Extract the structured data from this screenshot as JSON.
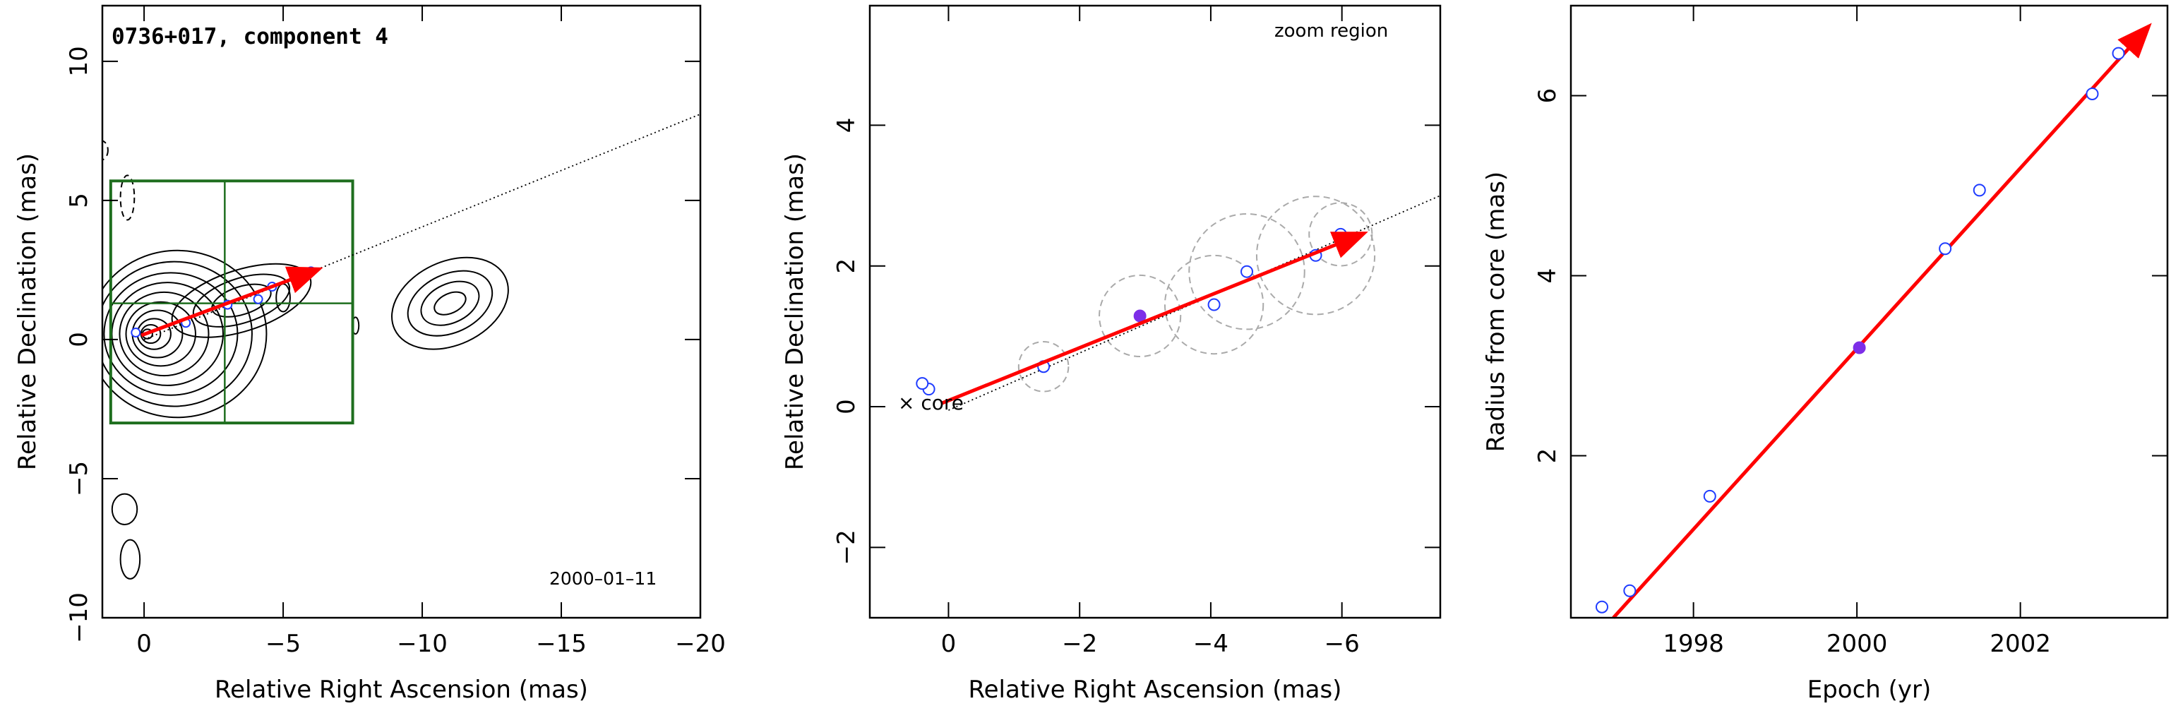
{
  "figure": {
    "panel1_title": "0736+017, component 4",
    "panel1_date": "2000–01–11",
    "panel2_zoom_label": "zoom region",
    "panel2_core_label": "× core"
  },
  "colors": {
    "fit_arrow": "#ff0000",
    "points_open": "#1f3cff",
    "points_filled": "#7d2ee8",
    "zoom_box": "#1e6e1e",
    "circles": "#aaaaaa"
  },
  "chart_data": [
    {
      "type": "scatter",
      "title": "0736+017, component 4",
      "xlabel": "Relative Right Ascension (mas)",
      "ylabel": "Relative Declination (mas)",
      "xlim": [
        1.5,
        -20
      ],
      "ylim": [
        -10,
        12
      ],
      "x_ticks": [
        0,
        -5,
        -10,
        -15,
        -20
      ],
      "y_ticks": [
        -10,
        -5,
        0,
        5,
        10
      ],
      "annotation": "2000–01–11",
      "points": [
        {
          "x": 0.3,
          "y": 0.25
        },
        {
          "x": -1.5,
          "y": 0.6
        },
        {
          "x": -3.0,
          "y": 1.25
        },
        {
          "x": -4.1,
          "y": 1.45
        },
        {
          "x": -4.6,
          "y": 1.9
        },
        {
          "x": -5.6,
          "y": 2.15
        },
        {
          "x": -6.0,
          "y": 2.45
        }
      ],
      "fit_arrow": {
        "from": [
          0.1,
          0.15
        ],
        "to": [
          -6.2,
          2.5
        ]
      },
      "trajectory_line": {
        "from": [
          0,
          0
        ],
        "to": [
          -20,
          8.1
        ]
      },
      "zoom_box": {
        "x": [
          1.2,
          -7.5
        ],
        "y": [
          -3,
          5.7
        ],
        "crosshair": [
          -2.9,
          1.3
        ]
      },
      "grid": false
    },
    {
      "type": "scatter",
      "title": "",
      "xlabel": "Relative Right Ascension (mas)",
      "ylabel": "Relative Declination (mas)",
      "xlim": [
        1.2,
        -7.5
      ],
      "ylim": [
        -3,
        5.7
      ],
      "x_ticks": [
        0,
        -2,
        -4,
        -6
      ],
      "y_ticks": [
        -2,
        0,
        2,
        4
      ],
      "annotations": [
        "zoom region",
        "× core"
      ],
      "points": [
        {
          "x": 0.3,
          "y": 0.25,
          "r": 0.0
        },
        {
          "x": 0.4,
          "y": 0.33,
          "r": 0.0
        },
        {
          "x": -1.45,
          "y": 0.57,
          "r": 0.38
        },
        {
          "x": -2.92,
          "y": 1.29,
          "r": 0.62,
          "filled": true
        },
        {
          "x": -4.05,
          "y": 1.45,
          "r": 0.75
        },
        {
          "x": -4.55,
          "y": 1.92,
          "r": 0.88
        },
        {
          "x": -5.6,
          "y": 2.15,
          "r": 0.9
        },
        {
          "x": -5.98,
          "y": 2.45,
          "r": 0.48
        }
      ],
      "fit_arrow": {
        "from": [
          0.1,
          0.05
        ],
        "to": [
          -6.3,
          2.45
        ]
      },
      "trajectory_line": {
        "from": [
          0,
          -0.05
        ],
        "to": [
          -7.5,
          3.0
        ]
      },
      "grid": false
    },
    {
      "type": "scatter",
      "title": "",
      "xlabel": "Epoch (yr)",
      "ylabel": "Radius from core (mas)",
      "xlim": [
        1996.5,
        2003.8
      ],
      "ylim": [
        0.2,
        7.0
      ],
      "x_ticks": [
        1998,
        2000,
        2002
      ],
      "y_ticks": [
        2,
        4,
        6
      ],
      "points": [
        {
          "x": 1996.88,
          "y": 0.32
        },
        {
          "x": 1997.22,
          "y": 0.5
        },
        {
          "x": 1998.2,
          "y": 1.55
        },
        {
          "x": 2000.03,
          "y": 3.2,
          "filled": true
        },
        {
          "x": 2001.08,
          "y": 4.3
        },
        {
          "x": 2001.5,
          "y": 4.95
        },
        {
          "x": 2002.88,
          "y": 6.02
        },
        {
          "x": 2003.2,
          "y": 6.47
        }
      ],
      "fit_arrow": {
        "from": [
          1997.02,
          0.2
        ],
        "to": [
          2003.55,
          6.75
        ]
      },
      "grid": false
    }
  ]
}
